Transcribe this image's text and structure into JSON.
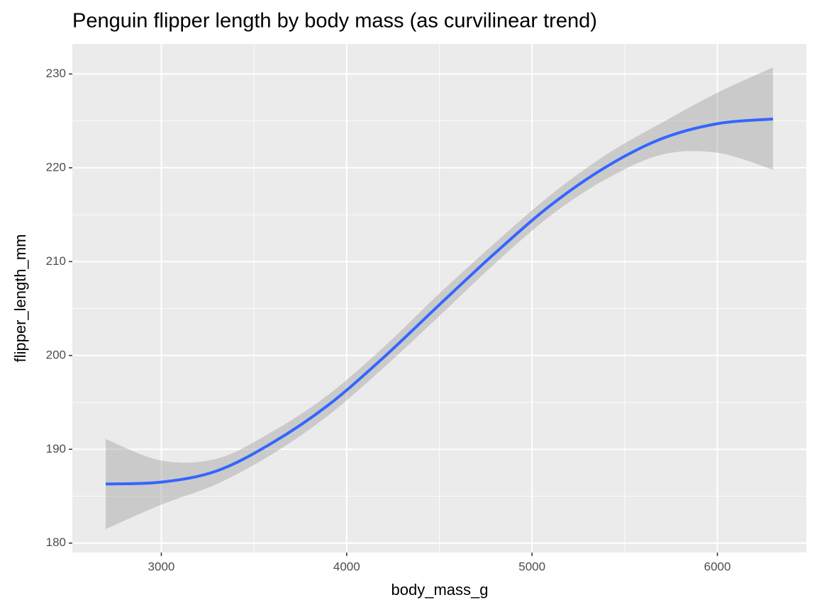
{
  "chart_data": {
    "type": "line",
    "title": "Penguin flipper length by body mass (as curvilinear trend)",
    "x_label": "body_mass_g",
    "y_label": "flipper_length_mm",
    "x": [
      2700,
      3000,
      3300,
      3600,
      3900,
      4200,
      4500,
      4800,
      5100,
      5400,
      5700,
      6000,
      6300
    ],
    "values": [
      186.3,
      186.5,
      187.7,
      190.7,
      194.7,
      199.8,
      205.4,
      210.9,
      216.0,
      220.1,
      223.1,
      224.7,
      225.2
    ],
    "lower": [
      181.5,
      184.1,
      186.3,
      189.5,
      193.6,
      198.7,
      204.2,
      209.8,
      214.9,
      218.8,
      221.4,
      221.6,
      219.8
    ],
    "upper": [
      191.1,
      188.8,
      189.0,
      191.9,
      195.8,
      200.9,
      206.6,
      212.0,
      217.1,
      221.4,
      224.8,
      228.0,
      230.7
    ],
    "color": "#3366ff",
    "band_color": "#999999",
    "xlim": [
      2520,
      6480
    ],
    "ylim": [
      179.0,
      233.2
    ],
    "xticks": [
      3000,
      4000,
      5000,
      6000
    ],
    "yticks": [
      180,
      190,
      200,
      210,
      220,
      230
    ],
    "xminor_ticks": [
      3500,
      4500,
      5500
    ],
    "yminor_ticks": [
      185,
      195,
      205,
      215,
      225
    ],
    "grid": true
  }
}
